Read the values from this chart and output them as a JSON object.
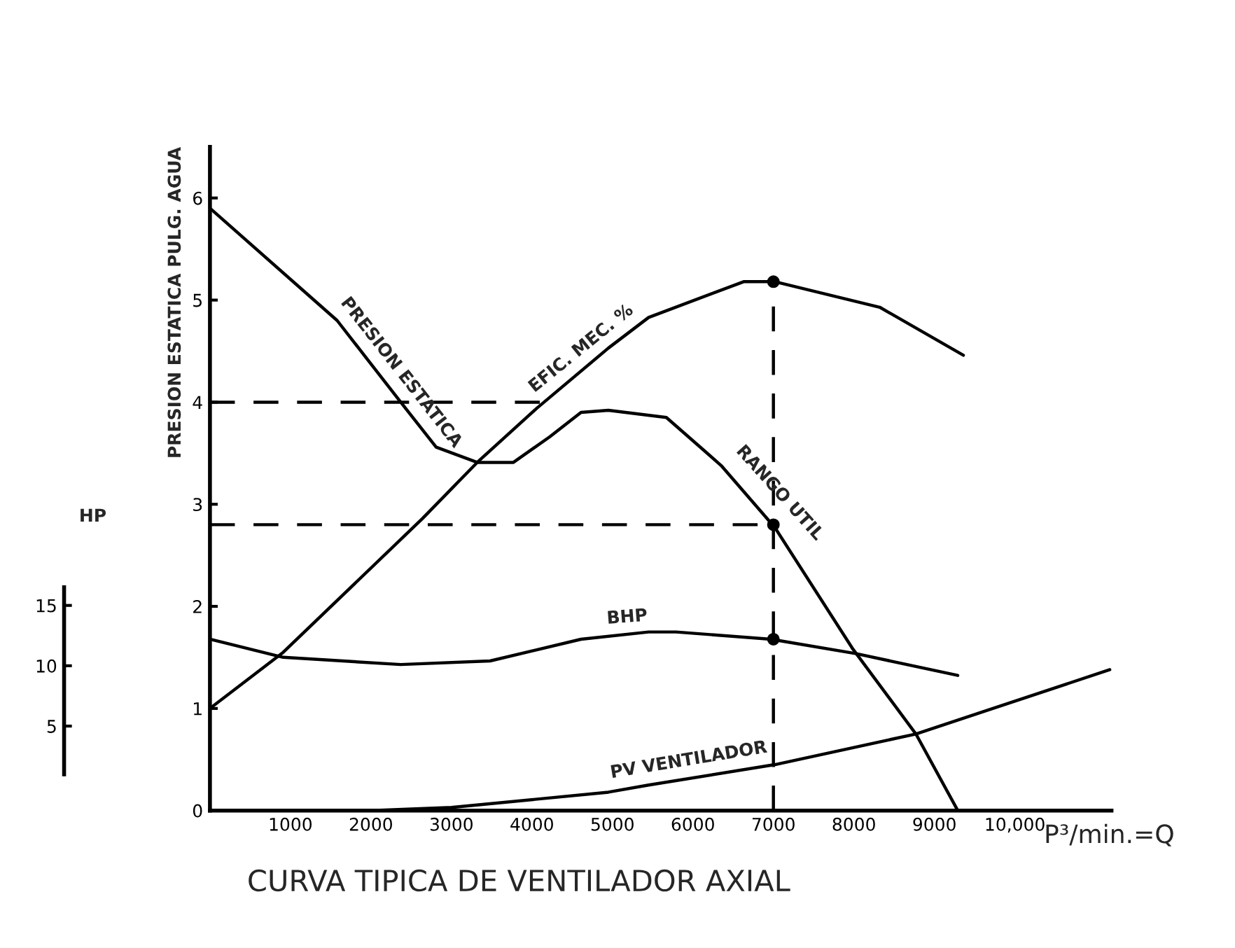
{
  "chart_data": {
    "type": "line",
    "title": "CURVA TIPICA DE VENTILADOR AXIAL",
    "xlabel": "P³/min.=Q",
    "ylabel": "PRESION ESTATICA PULG. AGUA",
    "y2label": "HP",
    "xlim": [
      0,
      11200
    ],
    "ylim": [
      0,
      6.5
    ],
    "y2lim": [
      -2,
      53
    ],
    "xticks": [
      1000,
      2000,
      3000,
      4000,
      5000,
      6000,
      7000,
      8000,
      9000,
      {
        "value": 10000,
        "label": "10,000"
      }
    ],
    "yticks": [
      0,
      1,
      2,
      3,
      4,
      5,
      6
    ],
    "annotations": [
      {
        "text": "RANGO UTIL",
        "x": 6350,
        "y": 3.38
      }
    ],
    "y2ticks": [
      5,
      10,
      15
    ],
    "grid": false,
    "legend": false,
    "marker": "none",
    "line_style": "solid",
    "series": [
      {
        "name": "PRESION ESTATICA",
        "color": "#000000",
        "x": [
          0,
          1580,
          2370,
          2810,
          3320,
          3770,
          4220,
          4610,
          4950,
          5670,
          6350,
          7020,
          7980,
          8770,
          9290
        ],
        "values": [
          5.9,
          4.8,
          4.0,
          3.56,
          3.41,
          3.41,
          3.66,
          3.9,
          3.92,
          3.85,
          3.38,
          2.77,
          1.59,
          0.75,
          0
        ]
      },
      {
        "name": "EFIC. MEC. %",
        "color": "#000000",
        "x": [
          0,
          910,
          2640,
          3320,
          4060,
          4950,
          5450,
          6630,
          7020,
          8320,
          9360
        ],
        "values": [
          1.0,
          1.55,
          2.86,
          3.41,
          3.94,
          4.53,
          4.83,
          5.18,
          5.18,
          4.93,
          4.46
        ]
      },
      {
        "name": "BHP",
        "color": "#000000",
        "axis": "y2",
        "x": [
          0,
          910,
          2370,
          3480,
          4610,
          5450,
          5790,
          6970,
          8030,
          9290
        ],
        "values": [
          12.2,
          10.7,
          10.1,
          10.4,
          12.2,
          12.8,
          12.8,
          12.2,
          11.0,
          9.2
        ]
      },
      {
        "name": "PV VENTILADOR",
        "color": "#000000",
        "x": [
          2000,
          3000,
          4950,
          5450,
          7020,
          8770,
          11180
        ],
        "values": [
          0,
          0.03,
          0.18,
          0.25,
          0.45,
          0.75,
          1.38
        ]
      },
      {
        "type": "line",
        "line_style": "dashed",
        "color": "#000000",
        "x": [
          0,
          4300
        ],
        "values": [
          4.0,
          4.0
        ]
      },
      {
        "type": "line",
        "line_style": "dashed",
        "color": "#000000",
        "x": [
          0,
          7000
        ],
        "values": [
          2.8,
          2.8
        ]
      },
      {
        "type": "line",
        "line_style": "dashed",
        "color": "#000000",
        "x": [
          7000,
          7000
        ],
        "values": [
          0,
          5.18
        ]
      },
      {
        "type": "scatter",
        "marker": "circle",
        "color": "#000000",
        "x": [
          7000,
          7000
        ],
        "values": [
          5.18,
          2.8
        ]
      },
      {
        "type": "scatter",
        "marker": "circle",
        "color": "#000000",
        "axis": "y2",
        "x": [
          7000
        ],
        "values": [
          12.2
        ]
      }
    ]
  }
}
